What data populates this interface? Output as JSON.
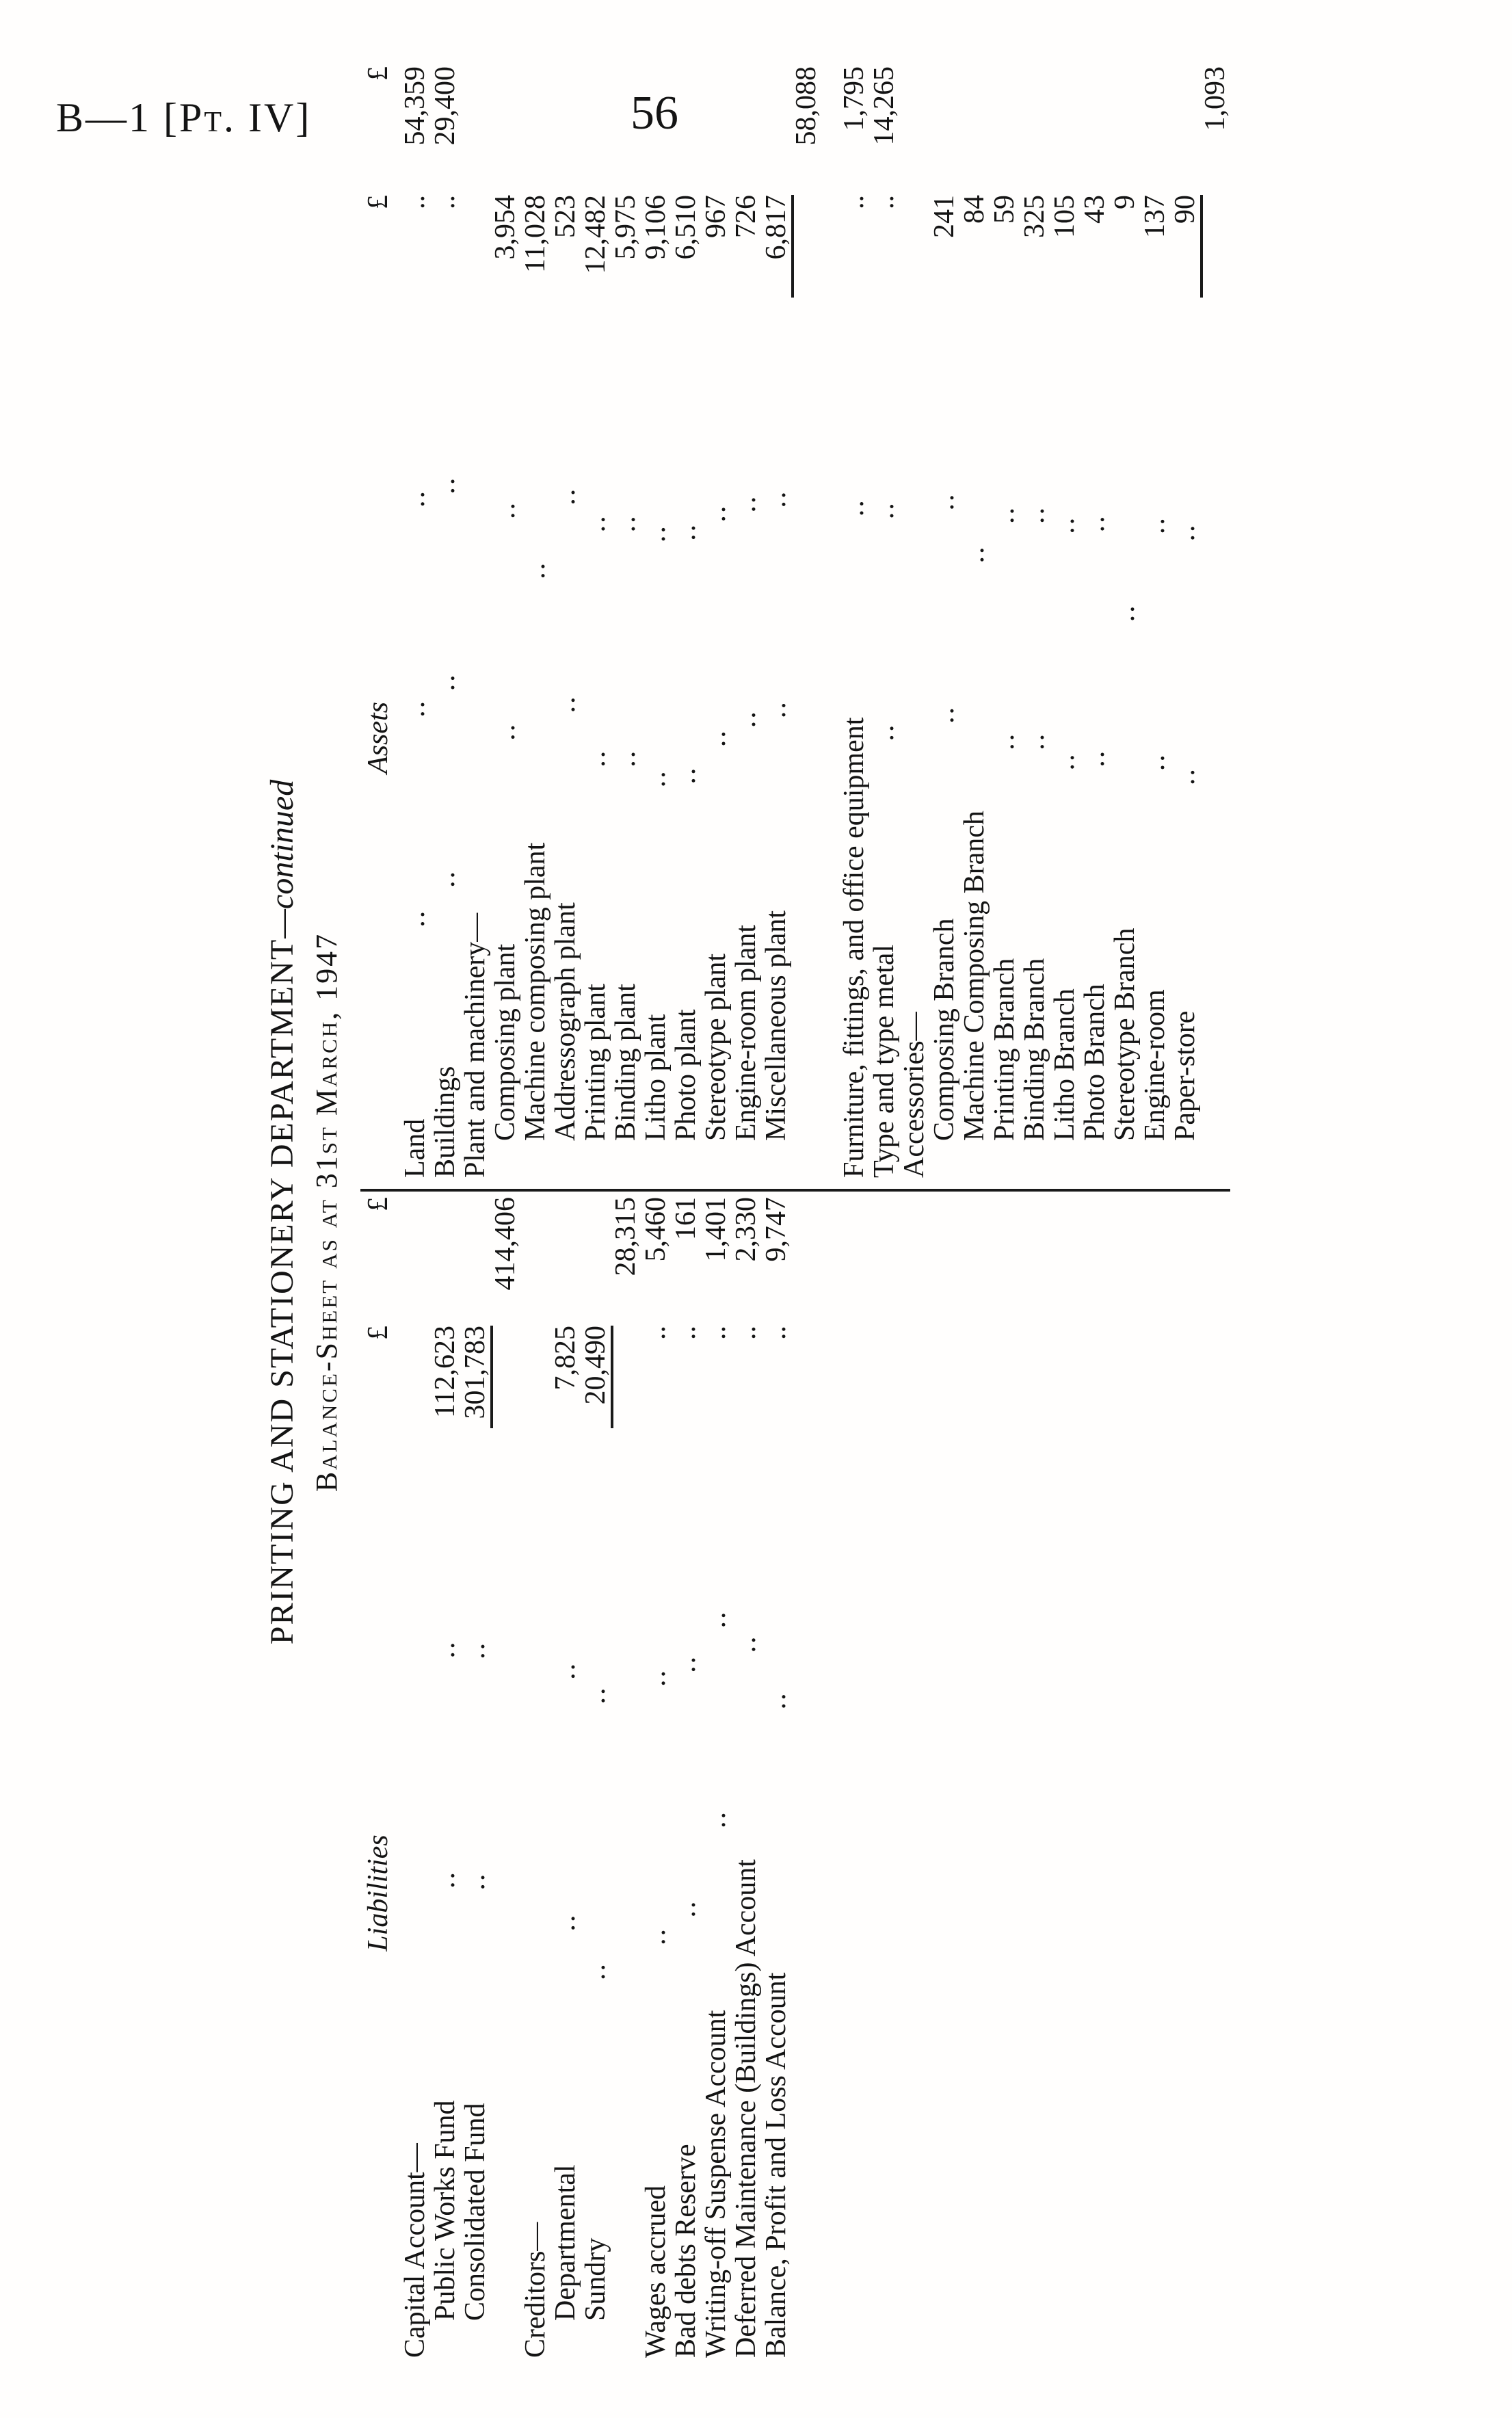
{
  "page": {
    "header_left": "B—1 [Pt. IV]",
    "page_number": "56"
  },
  "sheet": {
    "title_main": "PRINTING AND STATIONERY DEPARTMENT",
    "title_cont": "—continued",
    "subtitle": "Balance-Sheet as at 31st March, 1947",
    "currency_symbol": "£",
    "leader_dots": "..",
    "liabilities": {
      "heading": "Liabilities",
      "rows": [
        {
          "label": "Capital Account—",
          "indent": 0,
          "dots": 0,
          "col1": "",
          "col2": "",
          "rule": false
        },
        {
          "label": "Public Works Fund",
          "indent": 1,
          "dots": 2,
          "col1": "112,623",
          "col2": "",
          "rule": false
        },
        {
          "label": "Consolidated Fund",
          "indent": 1,
          "dots": 2,
          "col1": "301,783",
          "col2": "",
          "rule": false
        },
        {
          "label": "",
          "indent": 0,
          "dots": 0,
          "col1": "",
          "col2": "414,406",
          "rule": true
        },
        {
          "label": "Creditors—",
          "indent": 0,
          "dots": 0,
          "col1": "",
          "col2": "",
          "rule": false
        },
        {
          "label": "Departmental",
          "indent": 1,
          "dots": 2,
          "col1": "7,825",
          "col2": "",
          "rule": false
        },
        {
          "label": "Sundry",
          "indent": 1,
          "dots": 2,
          "col1": "20,490",
          "col2": "",
          "rule": false
        },
        {
          "label": "",
          "indent": 0,
          "dots": 0,
          "col1": "",
          "col2": "28,315",
          "rule": true
        },
        {
          "label": "Wages accrued",
          "indent": 0,
          "dots": 2,
          "col1": "..",
          "col2": "5,460",
          "rule": false
        },
        {
          "label": "Bad debts Reserve",
          "indent": 0,
          "dots": 2,
          "col1": "..",
          "col2": "161",
          "rule": false
        },
        {
          "label": "Writing-off Suspense Account",
          "indent": 0,
          "dots": 2,
          "col1": "..",
          "col2": "1,401",
          "rule": false
        },
        {
          "label": "Deferred Maintenance (Buildings) Account",
          "indent": 0,
          "dots": 1,
          "col1": "..",
          "col2": "2,330",
          "rule": false
        },
        {
          "label": "Balance, Profit and Loss Account",
          "indent": 0,
          "dots": 1,
          "col1": "..",
          "col2": "9,747",
          "rule": false
        }
      ]
    },
    "assets": {
      "heading": "Assets",
      "rows": [
        {
          "label": "Land",
          "indent": 0,
          "dots": 3,
          "col1": "..",
          "col2": "54,359",
          "rule": false
        },
        {
          "label": "Buildings",
          "indent": 0,
          "dots": 3,
          "col1": "..",
          "col2": "29,400",
          "rule": false
        },
        {
          "label": "Plant and machinery—",
          "indent": 0,
          "dots": 0,
          "col1": "",
          "col2": "",
          "rule": false
        },
        {
          "label": "Composing plant",
          "indent": 1,
          "dots": 2,
          "col1": "3,954",
          "col2": "",
          "rule": false
        },
        {
          "label": "Machine composing plant",
          "indent": 1,
          "dots": 1,
          "col1": "11,028",
          "col2": "",
          "rule": false
        },
        {
          "label": "Addressograph plant",
          "indent": 1,
          "dots": 2,
          "col1": "523",
          "col2": "",
          "rule": false
        },
        {
          "label": "Printing plant",
          "indent": 1,
          "dots": 2,
          "col1": "12,482",
          "col2": "",
          "rule": false
        },
        {
          "label": "Binding plant",
          "indent": 1,
          "dots": 2,
          "col1": "5,975",
          "col2": "",
          "rule": false
        },
        {
          "label": "Litho plant",
          "indent": 1,
          "dots": 2,
          "col1": "9,106",
          "col2": "",
          "rule": false
        },
        {
          "label": "Photo plant",
          "indent": 1,
          "dots": 2,
          "col1": "6,510",
          "col2": "",
          "rule": false
        },
        {
          "label": "Stereotype plant",
          "indent": 1,
          "dots": 2,
          "col1": "967",
          "col2": "",
          "rule": false
        },
        {
          "label": "Engine-room plant",
          "indent": 1,
          "dots": 2,
          "col1": "726",
          "col2": "",
          "rule": false
        },
        {
          "label": "Miscellaneous plant",
          "indent": 1,
          "dots": 2,
          "col1": "6,817",
          "col2": "",
          "rule": false
        },
        {
          "label": "",
          "indent": 0,
          "dots": 0,
          "col1": "",
          "col2": "58,088",
          "rule": true
        },
        {
          "label": "Furniture, fittings, and office equipment",
          "indent": 0,
          "dots": 1,
          "col1": "..",
          "col2": "1,795",
          "rule": false,
          "gap_before": true
        },
        {
          "label": "Type and type metal",
          "indent": 0,
          "dots": 2,
          "col1": "..",
          "col2": "14,265",
          "rule": false
        },
        {
          "label": "Accessories—",
          "indent": 0,
          "dots": 0,
          "col1": "",
          "col2": "",
          "rule": false
        },
        {
          "label": "Composing Branch",
          "indent": 1,
          "dots": 2,
          "col1": "241",
          "col2": "",
          "rule": false
        },
        {
          "label": "Machine Composing Branch",
          "indent": 1,
          "dots": 1,
          "col1": "84",
          "col2": "",
          "rule": false
        },
        {
          "label": "Printing Branch",
          "indent": 1,
          "dots": 2,
          "col1": "59",
          "col2": "",
          "rule": false
        },
        {
          "label": "Binding Branch",
          "indent": 1,
          "dots": 2,
          "col1": "325",
          "col2": "",
          "rule": false
        },
        {
          "label": "Litho Branch",
          "indent": 1,
          "dots": 2,
          "col1": "105",
          "col2": "",
          "rule": false
        },
        {
          "label": "Photo Branch",
          "indent": 1,
          "dots": 2,
          "col1": "43",
          "col2": "",
          "rule": false
        },
        {
          "label": "Stereotype Branch",
          "indent": 1,
          "dots": 1,
          "col1": "9",
          "col2": "",
          "rule": false
        },
        {
          "label": "Engine-room",
          "indent": 1,
          "dots": 2,
          "col1": "137",
          "col2": "",
          "rule": false
        },
        {
          "label": "Paper-store",
          "indent": 1,
          "dots": 2,
          "col1": "90",
          "col2": "",
          "rule": false
        },
        {
          "label": "",
          "indent": 0,
          "dots": 0,
          "col1": "",
          "col2": "1,093",
          "rule": true
        }
      ]
    }
  }
}
